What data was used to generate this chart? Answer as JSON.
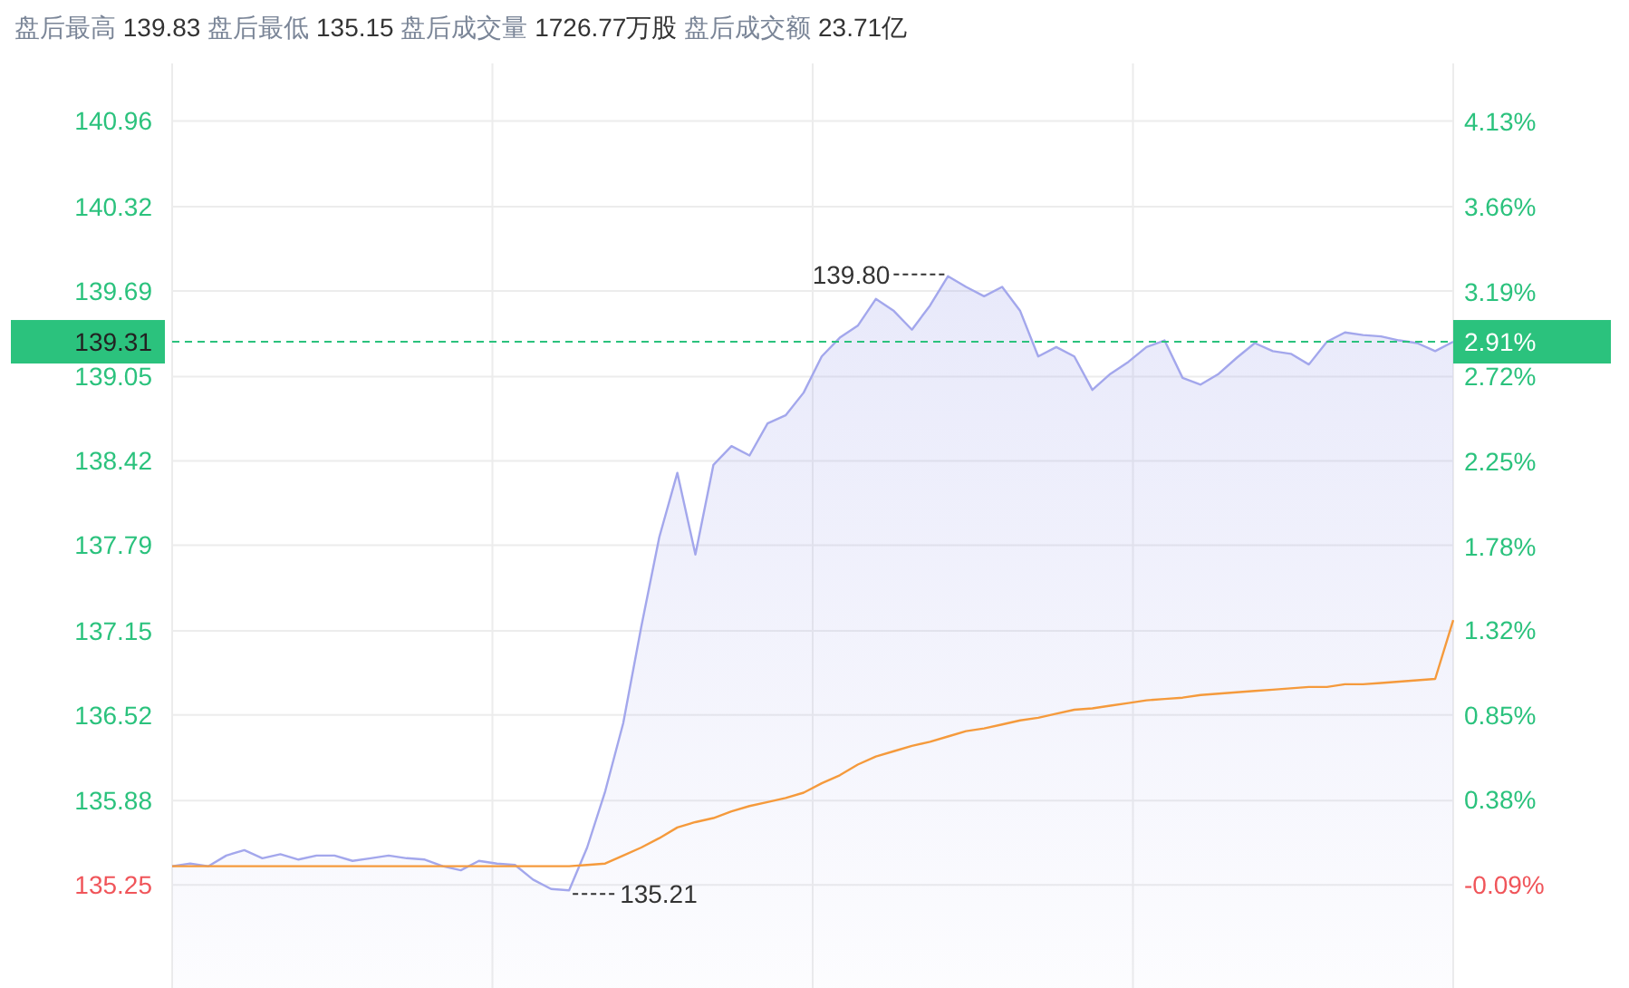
{
  "chart_data": {
    "type": "line",
    "title": "盘后最高 139.83 盘后最低 135.15 盘后成交量 1726.77万股 盘后成交额 23.71亿",
    "annotations": [
      "139.80",
      "135.21",
      "2.91%"
    ],
    "categories": [
      null,
      null,
      null,
      null,
      null,
      null,
      null,
      null,
      null,
      null,
      null,
      null,
      null,
      null,
      null,
      null,
      null,
      null,
      null,
      null,
      null,
      null,
      null,
      null,
      null,
      null,
      null,
      null,
      null,
      null,
      null,
      null,
      null,
      null,
      null,
      null,
      null,
      null,
      null,
      null,
      null,
      null,
      null,
      null,
      null,
      null,
      null,
      null,
      null,
      null,
      null,
      null,
      null,
      null,
      null,
      null,
      null,
      null,
      null,
      null,
      null,
      null,
      null,
      null,
      null,
      null,
      null,
      null,
      null,
      null,
      null,
      null
    ],
    "series": [
      {
        "type": "area",
        "color": "#a3a7ec",
        "values": [
          135.39,
          135.41,
          135.39,
          135.47,
          135.51,
          135.45,
          135.48,
          135.44,
          135.47,
          135.47,
          135.43,
          135.45,
          135.47,
          135.45,
          135.44,
          135.39,
          135.36,
          135.43,
          135.41,
          135.4,
          135.29,
          135.22,
          135.21,
          135.53,
          135.95,
          136.46,
          137.18,
          137.85,
          138.33,
          137.72,
          138.39,
          138.53,
          138.46,
          138.7,
          138.76,
          138.93,
          139.2,
          139.34,
          139.43,
          139.63,
          139.54,
          139.4,
          139.58,
          139.8,
          139.72,
          139.65,
          139.72,
          139.54,
          139.2,
          139.27,
          139.2,
          138.95,
          139.07,
          139.16,
          139.27,
          139.32,
          139.04,
          138.99,
          139.07,
          139.19,
          139.3,
          139.24,
          139.22,
          139.14,
          139.31,
          139.38,
          139.36,
          139.35,
          139.32,
          139.3,
          139.24,
          139.31
        ]
      },
      {
        "type": "line",
        "color": "#f59a3c",
        "values": [
          135.39,
          135.39,
          135.39,
          135.39,
          135.39,
          135.39,
          135.39,
          135.39,
          135.39,
          135.39,
          135.39,
          135.39,
          135.39,
          135.39,
          135.39,
          135.39,
          135.39,
          135.39,
          135.39,
          135.39,
          135.39,
          135.39,
          135.39,
          135.4,
          135.41,
          135.47,
          135.53,
          135.6,
          135.68,
          135.72,
          135.75,
          135.8,
          135.84,
          135.87,
          135.9,
          135.94,
          136.01,
          136.07,
          136.15,
          136.21,
          136.25,
          136.29,
          136.32,
          136.36,
          136.4,
          136.42,
          136.45,
          136.48,
          136.5,
          136.53,
          136.56,
          136.57,
          136.59,
          136.61,
          136.63,
          136.64,
          136.65,
          136.67,
          136.68,
          136.69,
          136.7,
          136.71,
          136.72,
          136.73,
          136.73,
          136.75,
          136.75,
          136.76,
          136.77,
          136.78,
          136.79,
          137.23
        ]
      }
    ],
    "ylim": [
      134.48,
      141.39
    ],
    "yticks": [
      135.25,
      135.88,
      136.52,
      137.15,
      137.79,
      138.42,
      139.05,
      139.69,
      140.32,
      140.96
    ],
    "y2lim": [
      -0.66,
      4.45
    ],
    "y2ticks": [
      {
        "value": -0.09,
        "label": "-0.09%"
      },
      {
        "value": 0.38,
        "label": "0.38%"
      },
      {
        "value": 0.85,
        "label": "0.85%"
      },
      {
        "value": 1.32,
        "label": "1.32%"
      },
      {
        "value": 1.78,
        "label": "1.78%"
      },
      {
        "value": 2.25,
        "label": "2.25%"
      },
      {
        "value": 2.72,
        "label": "2.72%"
      },
      {
        "value": 3.19,
        "label": "3.19%"
      },
      {
        "value": 3.66,
        "label": "3.66%"
      },
      {
        "value": 4.13,
        "label": "4.13%"
      }
    ],
    "ref_lines": [
      {
        "axis": "y",
        "value": 139.31,
        "label": "139.31",
        "color": "#2bc27d",
        "line_style": "dashed"
      }
    ],
    "grid": true
  }
}
